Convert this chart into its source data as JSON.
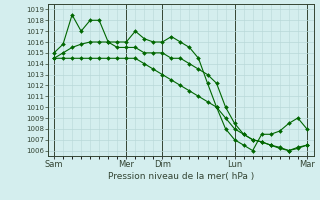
{
  "title": "",
  "xlabel": "Pression niveau de la mer( hPa )",
  "ylabel": "",
  "bg_color": "#d4eeee",
  "grid_color": "#b8d8d8",
  "line_color": "#006600",
  "ylim": [
    1005.5,
    1019.5
  ],
  "yticks": [
    1006,
    1007,
    1008,
    1009,
    1010,
    1011,
    1012,
    1013,
    1014,
    1015,
    1016,
    1017,
    1018,
    1019
  ],
  "day_labels": [
    "Sam",
    "Mer",
    "Dim",
    "Lun",
    "Mar"
  ],
  "day_positions": [
    0,
    96,
    144,
    240,
    336
  ],
  "xlim": [
    -8,
    345
  ],
  "series1_x": [
    0,
    12,
    24,
    36,
    48,
    60,
    72,
    84,
    96,
    108,
    120,
    132,
    144,
    156,
    168,
    180,
    192,
    204,
    216,
    228,
    240,
    252,
    264,
    276,
    288,
    300,
    312,
    324,
    336
  ],
  "series1_y": [
    1015.0,
    1015.8,
    1018.5,
    1017.0,
    1018.0,
    1018.0,
    1016.0,
    1016.0,
    1016.0,
    1017.0,
    1016.3,
    1016.0,
    1016.0,
    1016.5,
    1016.0,
    1015.5,
    1014.5,
    1012.2,
    1010.0,
    1008.0,
    1007.0,
    1006.5,
    1006.0,
    1007.5,
    1007.5,
    1007.8,
    1008.5,
    1009.0,
    1008.0
  ],
  "series2_x": [
    0,
    12,
    24,
    36,
    48,
    60,
    72,
    84,
    96,
    108,
    120,
    132,
    144,
    156,
    168,
    180,
    192,
    204,
    216,
    228,
    240,
    252,
    264,
    276,
    288,
    300,
    312,
    324,
    336
  ],
  "series2_y": [
    1014.5,
    1014.5,
    1014.5,
    1014.5,
    1014.5,
    1014.5,
    1014.5,
    1014.5,
    1014.5,
    1014.5,
    1014.0,
    1013.5,
    1013.0,
    1012.5,
    1012.0,
    1011.5,
    1011.0,
    1010.5,
    1010.0,
    1009.0,
    1008.0,
    1007.5,
    1007.0,
    1006.8,
    1006.5,
    1006.3,
    1006.0,
    1006.2,
    1006.5
  ],
  "series3_x": [
    0,
    12,
    24,
    36,
    48,
    60,
    72,
    84,
    96,
    108,
    120,
    132,
    144,
    156,
    168,
    180,
    192,
    204,
    216,
    228,
    240,
    252,
    264,
    276,
    288,
    300,
    312,
    324,
    336
  ],
  "series3_y": [
    1014.5,
    1015.0,
    1015.5,
    1015.8,
    1016.0,
    1016.0,
    1016.0,
    1015.5,
    1015.5,
    1015.5,
    1015.0,
    1015.0,
    1015.0,
    1014.5,
    1014.5,
    1014.0,
    1013.5,
    1013.0,
    1012.2,
    1010.0,
    1008.5,
    1007.5,
    1007.0,
    1006.8,
    1006.5,
    1006.2,
    1006.0,
    1006.3,
    1006.5
  ]
}
